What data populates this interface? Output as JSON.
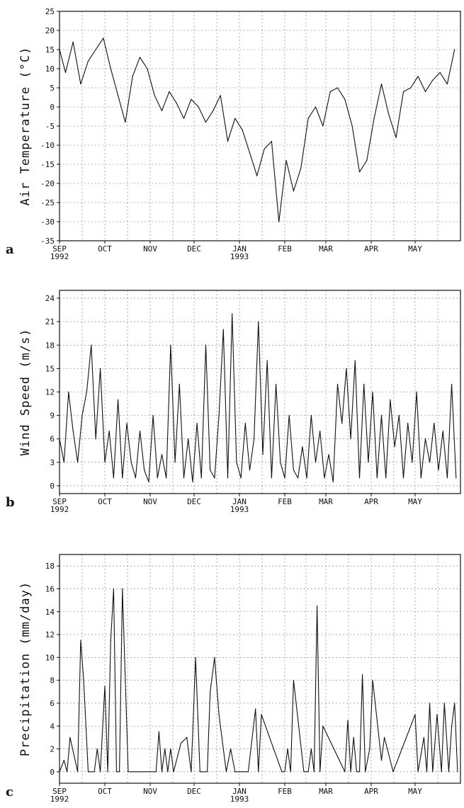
{
  "chart_data": [
    {
      "type": "line",
      "panel_label": "a",
      "ylabel": "Air Temperature (°C)",
      "ylim": [
        -35,
        25
      ],
      "yticks": [
        -35,
        -30,
        -25,
        -20,
        -15,
        -10,
        -5,
        0,
        5,
        10,
        15,
        20,
        25
      ],
      "grid": true,
      "xtick_labels": [
        [
          "SEP",
          "1992"
        ],
        [
          "OCT",
          ""
        ],
        [
          "NOV",
          ""
        ],
        [
          "DEC",
          ""
        ],
        [
          "JAN",
          "1993"
        ],
        [
          "FEB",
          ""
        ],
        [
          "MAR",
          ""
        ],
        [
          "APR",
          ""
        ],
        [
          "MAY",
          ""
        ]
      ],
      "x": [
        "1992-09-01",
        "1992-09-05",
        "1992-09-10",
        "1992-09-15",
        "1992-09-20",
        "1992-09-25",
        "1992-09-30",
        "1992-10-05",
        "1992-10-10",
        "1992-10-15",
        "1992-10-20",
        "1992-10-25",
        "1992-10-30",
        "1992-11-04",
        "1992-11-09",
        "1992-11-14",
        "1992-11-19",
        "1992-11-24",
        "1992-11-29",
        "1992-12-04",
        "1992-12-09",
        "1992-12-14",
        "1992-12-19",
        "1992-12-24",
        "1992-12-29",
        "1993-01-03",
        "1993-01-08",
        "1993-01-13",
        "1993-01-18",
        "1993-01-23",
        "1993-01-28",
        "1993-02-02",
        "1993-02-07",
        "1993-02-12",
        "1993-02-17",
        "1993-02-22",
        "1993-02-27",
        "1993-03-04",
        "1993-03-09",
        "1993-03-14",
        "1993-03-19",
        "1993-03-24",
        "1993-03-29",
        "1993-04-03",
        "1993-04-08",
        "1993-04-13",
        "1993-04-18",
        "1993-04-23",
        "1993-04-28",
        "1993-05-03",
        "1993-05-08",
        "1993-05-13",
        "1993-05-18",
        "1993-05-23",
        "1993-05-28"
      ],
      "series": [
        {
          "values": [
            15,
            9,
            17,
            6,
            12,
            15,
            18,
            10,
            3,
            -4,
            8,
            13,
            10,
            3,
            -1,
            4,
            1,
            -3,
            2,
            0,
            -4,
            -1,
            3,
            -9,
            -3,
            -6,
            -12,
            -18,
            -11,
            -9,
            -30,
            -14,
            -22,
            -16,
            -3,
            0,
            -5,
            4,
            5,
            2,
            -5,
            -17,
            -14,
            -3,
            6,
            -2,
            -8,
            4,
            5,
            8,
            4,
            7,
            9,
            6,
            15
          ]
        }
      ]
    },
    {
      "type": "line",
      "panel_label": "b",
      "ylabel": "Wind Speed (m/s)",
      "ylim": [
        -1,
        25
      ],
      "yticks": [
        0,
        3,
        6,
        9,
        12,
        15,
        18,
        21,
        24
      ],
      "grid": true,
      "xtick_labels": [
        [
          "SEP",
          "1992"
        ],
        [
          "OCT",
          ""
        ],
        [
          "NOV",
          ""
        ],
        [
          "DEC",
          ""
        ],
        [
          "JAN",
          "1993"
        ],
        [
          "FEB",
          ""
        ],
        [
          "MAR",
          ""
        ],
        [
          "APR",
          ""
        ],
        [
          "MAY",
          ""
        ]
      ],
      "x": [
        "1992-09-01",
        "1992-09-04",
        "1992-09-07",
        "1992-09-10",
        "1992-09-13",
        "1992-09-16",
        "1992-09-19",
        "1992-09-22",
        "1992-09-25",
        "1992-09-28",
        "1992-10-01",
        "1992-10-04",
        "1992-10-07",
        "1992-10-10",
        "1992-10-13",
        "1992-10-16",
        "1992-10-19",
        "1992-10-22",
        "1992-10-25",
        "1992-10-28",
        "1992-10-31",
        "1992-11-03",
        "1992-11-06",
        "1992-11-09",
        "1992-11-12",
        "1992-11-15",
        "1992-11-18",
        "1992-11-21",
        "1992-11-24",
        "1992-11-27",
        "1992-11-30",
        "1992-12-03",
        "1992-12-06",
        "1992-12-09",
        "1992-12-12",
        "1992-12-15",
        "1992-12-18",
        "1992-12-21",
        "1992-12-24",
        "1992-12-27",
        "1992-12-30",
        "1993-01-02",
        "1993-01-05",
        "1993-01-08",
        "1993-01-11",
        "1993-01-14",
        "1993-01-17",
        "1993-01-20",
        "1993-01-23",
        "1993-01-26",
        "1993-01-29",
        "1993-02-01",
        "1993-02-04",
        "1993-02-07",
        "1993-02-10",
        "1993-02-13",
        "1993-02-16",
        "1993-02-19",
        "1993-02-22",
        "1993-02-25",
        "1993-02-28",
        "1993-03-03",
        "1993-03-06",
        "1993-03-09",
        "1993-03-12",
        "1993-03-15",
        "1993-03-18",
        "1993-03-21",
        "1993-03-24",
        "1993-03-27",
        "1993-03-30",
        "1993-04-02",
        "1993-04-05",
        "1993-04-08",
        "1993-04-11",
        "1993-04-14",
        "1993-04-17",
        "1993-04-20",
        "1993-04-23",
        "1993-04-26",
        "1993-04-29",
        "1993-05-02",
        "1993-05-05",
        "1993-05-08",
        "1993-05-11",
        "1993-05-14",
        "1993-05-17",
        "1993-05-20",
        "1993-05-23",
        "1993-05-26",
        "1993-05-29"
      ],
      "series": [
        {
          "values": [
            6,
            3,
            12,
            7,
            3,
            9,
            12,
            18,
            6,
            15,
            3,
            7,
            1,
            11,
            1,
            8,
            3,
            1,
            7,
            2,
            0.5,
            9,
            1,
            4,
            1,
            18,
            3,
            13,
            1,
            6,
            0.5,
            8,
            1,
            18,
            2,
            1,
            9,
            20,
            1,
            22,
            3,
            1,
            8,
            2,
            6,
            21,
            4,
            16,
            1,
            13,
            3,
            1,
            9,
            2,
            1,
            5,
            1,
            9,
            3,
            7,
            1,
            4,
            0.5,
            13,
            8,
            15,
            6,
            16,
            1,
            13,
            3,
            12,
            1,
            9,
            1,
            11,
            5,
            9,
            1,
            8,
            3,
            12,
            1,
            6,
            3,
            8,
            2,
            7,
            1,
            13,
            1
          ]
        }
      ]
    },
    {
      "type": "line",
      "panel_label": "c",
      "ylabel": "Precipitation (mm/day)",
      "ylim": [
        -1,
        19
      ],
      "yticks": [
        0,
        2,
        4,
        6,
        8,
        10,
        12,
        14,
        16,
        18
      ],
      "grid": true,
      "xtick_labels": [
        [
          "SEP",
          "1992"
        ],
        [
          "OCT",
          ""
        ],
        [
          "NOV",
          ""
        ],
        [
          "DEC",
          ""
        ],
        [
          "JAN",
          "1993"
        ],
        [
          "FEB",
          ""
        ],
        [
          "MAR",
          ""
        ],
        [
          "APR",
          ""
        ],
        [
          "MAY",
          ""
        ]
      ],
      "x": [
        "1992-09-01",
        "1992-09-04",
        "1992-09-06",
        "1992-09-08",
        "1992-09-13",
        "1992-09-15",
        "1992-09-17",
        "1992-09-20",
        "1992-09-24",
        "1992-09-26",
        "1992-09-28",
        "1992-10-01",
        "1992-10-03",
        "1992-10-05",
        "1992-10-07",
        "1992-10-09",
        "1992-10-11",
        "1992-10-13",
        "1992-10-15",
        "1992-10-17",
        "1992-10-20",
        "1992-11-05",
        "1992-11-07",
        "1992-11-09",
        "1992-11-11",
        "1992-11-13",
        "1992-11-15",
        "1992-11-17",
        "1992-11-22",
        "1992-11-26",
        "1992-11-29",
        "1992-12-02",
        "1992-12-05",
        "1992-12-10",
        "1992-12-12",
        "1992-12-15",
        "1992-12-18",
        "1992-12-23",
        "1992-12-26",
        "1992-12-29",
        "1993-01-01",
        "1993-01-03",
        "1993-01-05",
        "1993-01-07",
        "1993-01-12",
        "1993-01-14",
        "1993-01-16",
        "1993-01-30",
        "1993-02-01",
        "1993-02-03",
        "1993-02-05",
        "1993-02-07",
        "1993-02-14",
        "1993-02-17",
        "1993-02-19",
        "1993-02-21",
        "1993-02-23",
        "1993-02-25",
        "1993-02-27",
        "1993-03-14",
        "1993-03-16",
        "1993-03-18",
        "1993-03-20",
        "1993-03-22",
        "1993-03-24",
        "1993-03-26",
        "1993-03-28",
        "1993-03-31",
        "1993-04-02",
        "1993-04-08",
        "1993-04-10",
        "1993-04-16",
        "1993-04-22",
        "1993-05-01",
        "1993-05-03",
        "1993-05-07",
        "1993-05-09",
        "1993-05-11",
        "1993-05-13",
        "1993-05-16",
        "1993-05-19",
        "1993-05-21",
        "1993-05-24",
        "1993-05-26",
        "1993-05-28",
        "1993-05-30"
      ],
      "series": [
        {
          "values": [
            0,
            1,
            0,
            3,
            0,
            11.5,
            8,
            0,
            0,
            2,
            0,
            7.5,
            0,
            11.5,
            16,
            0,
            0,
            16,
            8,
            0,
            0,
            0,
            3.5,
            0,
            2,
            0,
            2,
            0,
            2.5,
            3,
            0,
            10,
            0,
            0,
            7,
            10,
            5,
            0,
            2,
            0,
            0,
            0,
            0,
            0,
            5.5,
            0,
            5,
            0,
            0,
            2,
            0,
            8,
            0,
            0,
            2,
            0,
            14.5,
            0,
            4,
            0,
            4.5,
            0,
            3,
            0,
            0,
            8.5,
            0,
            2,
            8,
            1,
            3,
            0,
            2,
            5,
            0,
            3,
            0,
            6,
            0,
            5,
            0,
            6,
            0,
            4,
            6,
            0
          ]
        }
      ]
    }
  ]
}
